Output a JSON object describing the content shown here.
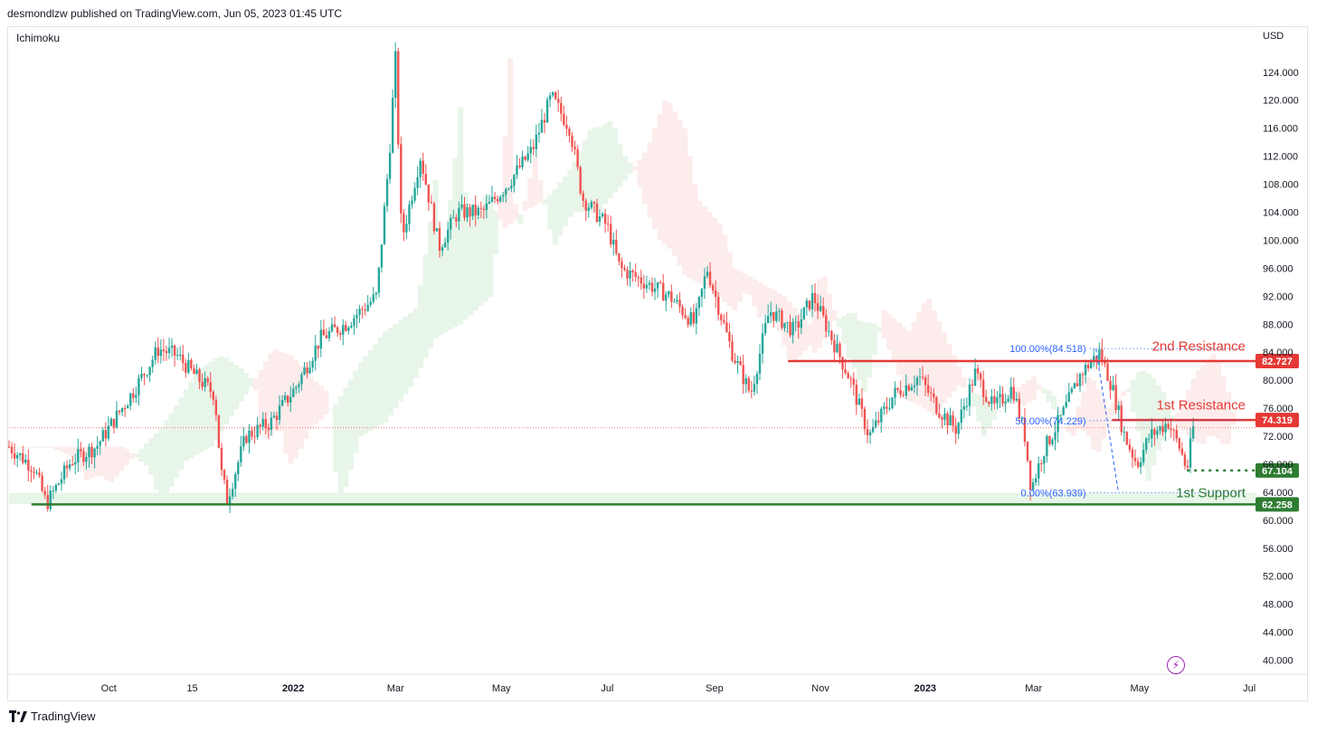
{
  "header": {
    "publisher": "desmondlzw published on TradingView.com, Jun 05, 2023 01:45 UTC"
  },
  "indicator": {
    "label": "Ichimoku"
  },
  "currency": "USD",
  "footer": {
    "brand": "TradingView",
    "logo_icon": "tradingview-logo-icon"
  },
  "colors": {
    "up": "#26a69a",
    "down": "#ef5350",
    "resistance": "#e53935",
    "support": "#2e7d32",
    "fib": "#2962ff",
    "cloud_bull": "#e8f5e9",
    "cloud_bear": "#fdecec"
  },
  "chart_data": {
    "type": "candlestick",
    "ylim": [
      38,
      128.5
    ],
    "ytick_labels": [
      "40.000",
      "44.000",
      "48.000",
      "52.000",
      "56.000",
      "60.000",
      "64.000",
      "68.000",
      "72.000",
      "76.000",
      "80.000",
      "84.000",
      "88.000",
      "92.000",
      "96.000",
      "100.000",
      "104.000",
      "108.000",
      "112.000",
      "116.000",
      "120.000",
      "124.000"
    ],
    "ytick_values": [
      40,
      44,
      48,
      52,
      56,
      60,
      64,
      68,
      72,
      76,
      80,
      84,
      88,
      92,
      96,
      100,
      104,
      108,
      112,
      116,
      120,
      124
    ],
    "xtick_labels": [
      {
        "label": "Oct",
        "pos": 0.08,
        "bold": false
      },
      {
        "label": "15",
        "pos": 0.147,
        "bold": false
      },
      {
        "label": "2022",
        "pos": 0.228,
        "bold": true
      },
      {
        "label": "Mar",
        "pos": 0.31,
        "bold": false
      },
      {
        "label": "May",
        "pos": 0.395,
        "bold": false
      },
      {
        "label": "Jul",
        "pos": 0.48,
        "bold": false
      },
      {
        "label": "Sep",
        "pos": 0.566,
        "bold": false
      },
      {
        "label": "Nov",
        "pos": 0.651,
        "bold": false
      },
      {
        "label": "2023",
        "pos": 0.735,
        "bold": true
      },
      {
        "label": "Mar",
        "pos": 0.822,
        "bold": false
      },
      {
        "label": "May",
        "pos": 0.907,
        "bold": false
      },
      {
        "label": "Jul",
        "pos": 0.995,
        "bold": false
      }
    ],
    "price_path": [
      [
        0.0,
        70.5
      ],
      [
        0.02,
        67.5
      ],
      [
        0.03,
        62.3
      ],
      [
        0.05,
        68.5
      ],
      [
        0.07,
        70.5
      ],
      [
        0.1,
        78.5
      ],
      [
        0.12,
        84.5
      ],
      [
        0.135,
        83.5
      ],
      [
        0.15,
        80.5
      ],
      [
        0.165,
        78
      ],
      [
        0.17,
        67
      ],
      [
        0.175,
        63
      ],
      [
        0.19,
        72
      ],
      [
        0.21,
        74
      ],
      [
        0.23,
        79
      ],
      [
        0.25,
        86
      ],
      [
        0.27,
        88
      ],
      [
        0.295,
        92
      ],
      [
        0.305,
        112
      ],
      [
        0.31,
        126
      ],
      [
        0.315,
        100
      ],
      [
        0.33,
        112
      ],
      [
        0.345,
        99
      ],
      [
        0.36,
        104
      ],
      [
        0.38,
        104
      ],
      [
        0.4,
        108
      ],
      [
        0.42,
        113
      ],
      [
        0.435,
        120.5
      ],
      [
        0.45,
        116
      ],
      [
        0.46,
        106
      ],
      [
        0.48,
        102
      ],
      [
        0.49,
        96
      ],
      [
        0.51,
        94
      ],
      [
        0.53,
        92
      ],
      [
        0.55,
        88
      ],
      [
        0.56,
        96
      ],
      [
        0.57,
        90
      ],
      [
        0.58,
        84
      ],
      [
        0.595,
        78
      ],
      [
        0.61,
        90
      ],
      [
        0.63,
        87
      ],
      [
        0.645,
        92
      ],
      [
        0.66,
        86
      ],
      [
        0.675,
        80
      ],
      [
        0.69,
        72
      ],
      [
        0.71,
        78
      ],
      [
        0.73,
        80.5
      ],
      [
        0.745,
        76
      ],
      [
        0.76,
        73
      ],
      [
        0.775,
        81
      ],
      [
        0.79,
        76
      ],
      [
        0.805,
        79
      ],
      [
        0.815,
        72
      ],
      [
        0.82,
        64.5
      ],
      [
        0.83,
        70
      ],
      [
        0.845,
        75
      ],
      [
        0.86,
        81
      ],
      [
        0.875,
        84
      ],
      [
        0.885,
        79
      ],
      [
        0.895,
        72
      ],
      [
        0.905,
        68
      ],
      [
        0.915,
        72
      ],
      [
        0.93,
        74
      ],
      [
        0.94,
        70
      ],
      [
        0.945,
        67.1
      ],
      [
        0.95,
        73.2
      ]
    ],
    "levels": [
      {
        "name": "2nd Resistance",
        "value": 82.727,
        "label": "82.727",
        "color": "#e53935",
        "style": "solid"
      },
      {
        "name": "1st Resistance",
        "value": 74.319,
        "label": "74.319",
        "color": "#e53935",
        "style": "solid"
      },
      {
        "name": "current",
        "value": 67.104,
        "label": "67.104",
        "color": "#2e7d32",
        "style": "dotted"
      },
      {
        "name": "1st Support",
        "value": 62.258,
        "label": "62.258",
        "color": "#2e7d32",
        "style": "solid"
      }
    ],
    "annotations": {
      "second_resistance": "2nd Resistance",
      "first_resistance": "1st Resistance",
      "first_support": "1st Support"
    },
    "fib": [
      {
        "label": "100.00%(84.518)",
        "value": 84.518
      },
      {
        "label": "50.00%(74.229)",
        "value": 74.229
      },
      {
        "label": "0.00%(63.939)",
        "value": 63.939
      }
    ]
  }
}
